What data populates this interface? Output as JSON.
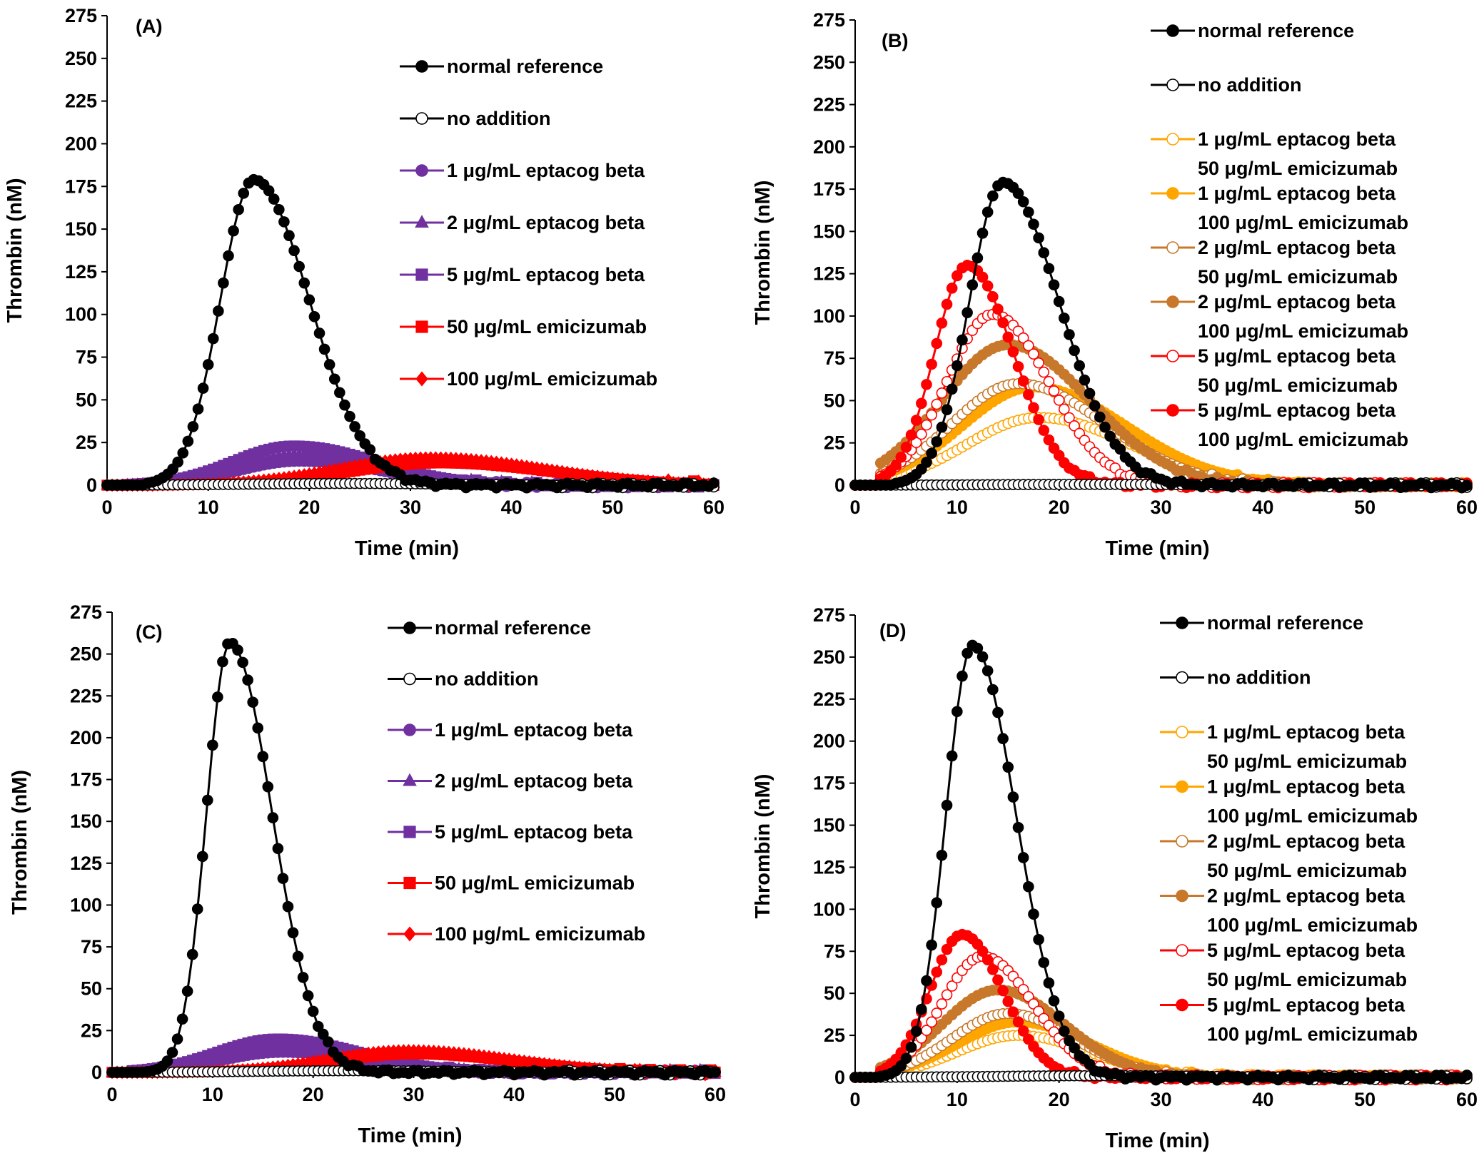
{
  "chart_data": [
    {
      "type": "line",
      "panel_label": "(A)",
      "xlabel": "Time (min)",
      "ylabel": "Thrombin (nM)",
      "xlim": [
        0,
        60
      ],
      "ylim": [
        0,
        275
      ],
      "xticks": [
        0,
        10,
        20,
        30,
        40,
        50,
        60
      ],
      "yticks": [
        0,
        25,
        50,
        75,
        100,
        125,
        150,
        175,
        200,
        225,
        250,
        275
      ],
      "grid": false,
      "legend_position": "right",
      "series": [
        {
          "name": "normal reference",
          "color": "#000000",
          "marker": "circle-filled",
          "peak_time": 14.5,
          "peak_value": 179,
          "rise_width": 3.3,
          "fall_width": 5.5,
          "start": 6
        },
        {
          "name": "no addition",
          "color": "#000000",
          "marker": "circle-open",
          "peak_time": 24,
          "peak_value": 1,
          "rise_width": 10,
          "fall_width": 10,
          "start": 0
        },
        {
          "name": "1 μg/mL eptacog beta",
          "color": "#7030A0",
          "marker": "circle-filled",
          "peak_time": 19,
          "peak_value": 14,
          "rise_width": 6,
          "fall_width": 8,
          "start": 3
        },
        {
          "name": "2 μg/mL eptacog beta",
          "color": "#7030A0",
          "marker": "triangle-filled",
          "peak_time": 19,
          "peak_value": 18,
          "rise_width": 6,
          "fall_width": 8,
          "start": 3
        },
        {
          "name": "5 μg/mL eptacog beta",
          "color": "#7030A0",
          "marker": "square-filled",
          "peak_time": 18.5,
          "peak_value": 23,
          "rise_width": 6,
          "fall_width": 8,
          "start": 3
        },
        {
          "name": "50 μg/mL emicizumab",
          "color": "#FF0000",
          "marker": "square-filled",
          "peak_time": 33,
          "peak_value": 13,
          "rise_width": 9,
          "fall_width": 11,
          "start": 8
        },
        {
          "name": "100 μg/mL emicizumab",
          "color": "#FF0000",
          "marker": "diamond-filled",
          "peak_time": 32,
          "peak_value": 16,
          "rise_width": 9,
          "fall_width": 11,
          "start": 8
        }
      ]
    },
    {
      "type": "line",
      "panel_label": "(B)",
      "xlabel": "Time (min)",
      "ylabel": "Thrombin (nM)",
      "xlim": [
        0,
        60
      ],
      "ylim": [
        0,
        275
      ],
      "xticks": [
        0,
        10,
        20,
        30,
        40,
        50,
        60
      ],
      "yticks": [
        0,
        25,
        50,
        75,
        100,
        125,
        150,
        175,
        200,
        225,
        250,
        275
      ],
      "grid": false,
      "legend_position": "right",
      "series": [
        {
          "name": "normal reference",
          "color": "#000000",
          "marker": "circle-filled",
          "peak_time": 14.5,
          "peak_value": 179,
          "rise_width": 3.3,
          "fall_width": 5.5,
          "start": 6
        },
        {
          "name": "no addition",
          "color": "#000000",
          "marker": "circle-open",
          "peak_time": 24,
          "peak_value": 0.5,
          "rise_width": 10,
          "fall_width": 10,
          "start": 0
        },
        {
          "name": "1 μg/mL eptacog beta",
          "name_line2": "50 μg/mL emicizumab",
          "color": "#FFA500",
          "marker": "circle-open",
          "peak_time": 18,
          "peak_value": 40,
          "rise_width": 7,
          "fall_width": 9,
          "start": 4
        },
        {
          "name": "1 μg/mL eptacog beta",
          "name_line2": "100 μg/mL emicizumab",
          "color": "#FFA500",
          "marker": "circle-filled",
          "peak_time": 17.5,
          "peak_value": 58,
          "rise_width": 7,
          "fall_width": 9,
          "start": 4
        },
        {
          "name": "2 μg/mL eptacog beta",
          "name_line2": "50 μg/mL emicizumab",
          "color": "#C8782A",
          "marker": "circle-open",
          "peak_time": 16,
          "peak_value": 60,
          "rise_width": 6.5,
          "fall_width": 8.5,
          "start": 4
        },
        {
          "name": "2 μg/mL eptacog beta",
          "name_line2": "100 μg/mL emicizumab",
          "color": "#C8782A",
          "marker": "circle-filled",
          "peak_time": 15,
          "peak_value": 83,
          "rise_width": 6.5,
          "fall_width": 8,
          "start": 4
        },
        {
          "name": "5 μg/mL eptacog beta",
          "name_line2": "50 μg/mL emicizumab",
          "color": "#FF0000",
          "marker": "circle-open",
          "peak_time": 13.5,
          "peak_value": 101,
          "rise_width": 4.5,
          "fall_width": 5.5,
          "start": 4
        },
        {
          "name": "5 μg/mL eptacog beta",
          "name_line2": "100 μg/mL emicizumab",
          "color": "#FF0000",
          "marker": "circle-filled",
          "peak_time": 11,
          "peak_value": 130,
          "rise_width": 3.2,
          "fall_width": 4.5,
          "start": 4
        }
      ]
    },
    {
      "type": "line",
      "panel_label": "(C)",
      "xlabel": "Time (min)",
      "ylabel": "Thrombin (nM)",
      "xlim": [
        0,
        60
      ],
      "ylim": [
        0,
        275
      ],
      "xticks": [
        0,
        10,
        20,
        30,
        40,
        50,
        60
      ],
      "yticks": [
        0,
        25,
        50,
        75,
        100,
        125,
        150,
        175,
        200,
        225,
        250,
        275
      ],
      "grid": false,
      "legend_position": "right",
      "series": [
        {
          "name": "normal reference",
          "color": "#000000",
          "marker": "circle-filled",
          "peak_time": 11.7,
          "peak_value": 257,
          "rise_width": 2.3,
          "fall_width": 4.2,
          "start": 5
        },
        {
          "name": "no addition",
          "color": "#000000",
          "marker": "circle-open",
          "peak_time": 24,
          "peak_value": 1,
          "rise_width": 10,
          "fall_width": 10,
          "start": 0
        },
        {
          "name": "1 μg/mL eptacog beta",
          "color": "#7030A0",
          "marker": "circle-filled",
          "peak_time": 17,
          "peak_value": 12,
          "rise_width": 6,
          "fall_width": 8,
          "start": 3
        },
        {
          "name": "2 μg/mL eptacog beta",
          "color": "#7030A0",
          "marker": "triangle-filled",
          "peak_time": 17,
          "peak_value": 16,
          "rise_width": 6,
          "fall_width": 8,
          "start": 3
        },
        {
          "name": "5 μg/mL eptacog beta",
          "color": "#7030A0",
          "marker": "square-filled",
          "peak_time": 16.5,
          "peak_value": 20,
          "rise_width": 6,
          "fall_width": 8,
          "start": 3
        },
        {
          "name": "50 μg/mL emicizumab",
          "color": "#FF0000",
          "marker": "square-filled",
          "peak_time": 30,
          "peak_value": 11,
          "rise_width": 8,
          "fall_width": 10,
          "start": 8
        },
        {
          "name": "100 μg/mL emicizumab",
          "color": "#FF0000",
          "marker": "diamond-filled",
          "peak_time": 29.5,
          "peak_value": 13,
          "rise_width": 8,
          "fall_width": 10,
          "start": 8
        }
      ]
    },
    {
      "type": "line",
      "panel_label": "(D)",
      "xlabel": "Time (min)",
      "ylabel": "Thrombin (nM)",
      "xlim": [
        0,
        60
      ],
      "ylim": [
        0,
        275
      ],
      "xticks": [
        0,
        10,
        20,
        30,
        40,
        50,
        60
      ],
      "yticks": [
        0,
        25,
        50,
        75,
        100,
        125,
        150,
        175,
        200,
        225,
        250,
        275
      ],
      "grid": false,
      "legend_position": "right",
      "series": [
        {
          "name": "normal reference",
          "color": "#000000",
          "marker": "circle-filled",
          "peak_time": 11.5,
          "peak_value": 257,
          "rise_width": 2.6,
          "fall_width": 4.3,
          "start": 4
        },
        {
          "name": "no addition",
          "color": "#000000",
          "marker": "circle-open",
          "peak_time": 24,
          "peak_value": 1,
          "rise_width": 10,
          "fall_width": 10,
          "start": 0
        },
        {
          "name": "1 μg/mL eptacog beta",
          "name_line2": "50 μg/mL emicizumab",
          "color": "#FFA500",
          "marker": "circle-open",
          "peak_time": 16,
          "peak_value": 25,
          "rise_width": 6,
          "fall_width": 7,
          "start": 4
        },
        {
          "name": "1 μg/mL eptacog beta",
          "name_line2": "100 μg/mL emicizumab",
          "color": "#FFA500",
          "marker": "circle-filled",
          "peak_time": 16,
          "peak_value": 33,
          "rise_width": 6,
          "fall_width": 7,
          "start": 4
        },
        {
          "name": "2 μg/mL eptacog beta",
          "name_line2": "50 μg/mL emicizumab",
          "color": "#C8782A",
          "marker": "circle-open",
          "peak_time": 15,
          "peak_value": 38,
          "rise_width": 5.5,
          "fall_width": 6.5,
          "start": 4
        },
        {
          "name": "2 μg/mL eptacog beta",
          "name_line2": "100 μg/mL emicizumab",
          "color": "#C8782A",
          "marker": "circle-filled",
          "peak_time": 14,
          "peak_value": 52,
          "rise_width": 5.5,
          "fall_width": 6.5,
          "start": 4
        },
        {
          "name": "5 μg/mL eptacog beta",
          "name_line2": "50 μg/mL emicizumab",
          "color": "#FF0000",
          "marker": "circle-open",
          "peak_time": 12.5,
          "peak_value": 72,
          "rise_width": 4,
          "fall_width": 5,
          "start": 4
        },
        {
          "name": "5 μg/mL eptacog beta",
          "name_line2": "100 μg/mL emicizumab",
          "color": "#FF0000",
          "marker": "circle-filled",
          "peak_time": 10.5,
          "peak_value": 85,
          "rise_width": 3.2,
          "fall_width": 4,
          "start": 4
        }
      ]
    }
  ]
}
